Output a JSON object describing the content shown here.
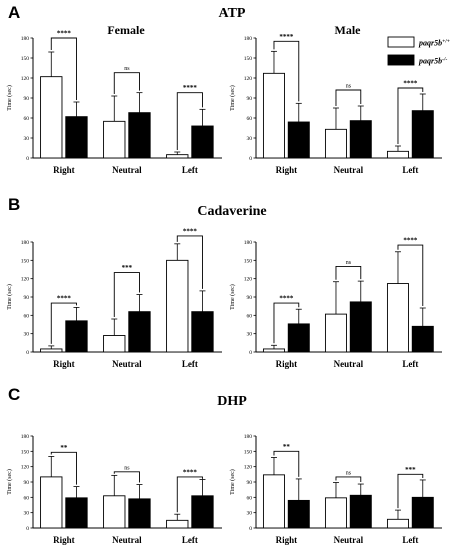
{
  "figure": {
    "panel_letters": [
      "A",
      "B",
      "C"
    ],
    "row_titles": [
      "ATP",
      "Cadaverine",
      "DHP"
    ],
    "legend": {
      "entries": [
        {
          "label": "paqr5b",
          "sup": "+/+",
          "color": "#ffffff"
        },
        {
          "label": "paqr5b",
          "sup": "-/-",
          "color": "#000000"
        }
      ]
    }
  },
  "chart_data": [
    {
      "type": "bar",
      "panel": "A",
      "title": "Female",
      "categories": [
        "Right",
        "Neutral",
        "Left"
      ],
      "ylabel": "Time (sec)",
      "ylim": [
        0,
        180
      ],
      "yticks": [
        0,
        30,
        60,
        90,
        120,
        150,
        180
      ],
      "series": [
        {
          "name": "paqr5b+/+",
          "color": "#ffffff",
          "values": [
            122,
            55,
            5
          ],
          "errors": [
            37,
            38,
            4
          ]
        },
        {
          "name": "paqr5b-/-",
          "color": "#000000",
          "values": [
            62,
            68,
            48
          ],
          "errors": [
            22,
            30,
            25
          ]
        }
      ],
      "significance": [
        "****",
        "ns",
        "****"
      ],
      "bracket_y": [
        180,
        128,
        98
      ]
    },
    {
      "type": "bar",
      "panel": "A",
      "title": "Male",
      "categories": [
        "Right",
        "Neutral",
        "Left"
      ],
      "ylabel": "Time (sec)",
      "ylim": [
        0,
        180
      ],
      "yticks": [
        0,
        30,
        60,
        90,
        120,
        150,
        180
      ],
      "series": [
        {
          "name": "paqr5b+/+",
          "color": "#ffffff",
          "values": [
            127,
            43,
            10
          ],
          "errors": [
            33,
            32,
            8
          ]
        },
        {
          "name": "paqr5b-/-",
          "color": "#000000",
          "values": [
            54,
            56,
            71
          ],
          "errors": [
            28,
            22,
            25
          ]
        }
      ],
      "significance": [
        "****",
        "ns",
        "****"
      ],
      "bracket_y": [
        175,
        102,
        105
      ]
    },
    {
      "type": "bar",
      "panel": "B",
      "categories": [
        "Right",
        "Neutral",
        "Left"
      ],
      "ylabel": "Time (sec)",
      "ylim": [
        0,
        180
      ],
      "yticks": [
        0,
        30,
        60,
        90,
        120,
        150,
        180
      ],
      "series": [
        {
          "name": "paqr5b+/+",
          "color": "#ffffff",
          "values": [
            5,
            27,
            150
          ],
          "errors": [
            5,
            27,
            27
          ]
        },
        {
          "name": "paqr5b-/-",
          "color": "#000000",
          "values": [
            51,
            66,
            66
          ],
          "errors": [
            22,
            28,
            34
          ]
        }
      ],
      "significance": [
        "****",
        "***",
        "****"
      ],
      "bracket_y": [
        80,
        130,
        190
      ]
    },
    {
      "type": "bar",
      "panel": "B",
      "categories": [
        "Right",
        "Neutral",
        "Left"
      ],
      "ylabel": "Time (sec)",
      "ylim": [
        0,
        180
      ],
      "yticks": [
        0,
        30,
        60,
        90,
        120,
        150,
        180
      ],
      "series": [
        {
          "name": "paqr5b+/+",
          "color": "#ffffff",
          "values": [
            5,
            62,
            112
          ],
          "errors": [
            6,
            53,
            52
          ]
        },
        {
          "name": "paqr5b-/-",
          "color": "#000000",
          "values": [
            46,
            82,
            42
          ],
          "errors": [
            24,
            34,
            30
          ]
        }
      ],
      "significance": [
        "****",
        "ns",
        "****"
      ],
      "bracket_y": [
        80,
        140,
        175
      ]
    },
    {
      "type": "bar",
      "panel": "C",
      "categories": [
        "Right",
        "Neutral",
        "Left"
      ],
      "ylabel": "Time (sec)",
      "ylim": [
        0,
        180
      ],
      "yticks": [
        0,
        30,
        60,
        90,
        120,
        150,
        180
      ],
      "series": [
        {
          "name": "paqr5b+/+",
          "color": "#ffffff",
          "values": [
            100,
            63,
            15
          ],
          "errors": [
            40,
            40,
            12
          ]
        },
        {
          "name": "paqr5b-/-",
          "color": "#000000",
          "values": [
            59,
            57,
            63
          ],
          "errors": [
            22,
            28,
            32
          ]
        }
      ],
      "significance": [
        "**",
        "ns",
        "****"
      ],
      "bracket_y": [
        148,
        110,
        100
      ]
    },
    {
      "type": "bar",
      "panel": "C",
      "categories": [
        "Right",
        "Neutral",
        "Left"
      ],
      "ylabel": "Time (sec)",
      "ylim": [
        0,
        180
      ],
      "yticks": [
        0,
        30,
        60,
        90,
        120,
        150,
        180
      ],
      "series": [
        {
          "name": "paqr5b+/+",
          "color": "#ffffff",
          "values": [
            104,
            59,
            17
          ],
          "errors": [
            34,
            30,
            18
          ]
        },
        {
          "name": "paqr5b-/-",
          "color": "#000000",
          "values": [
            54,
            64,
            60
          ],
          "errors": [
            42,
            22,
            34
          ]
        }
      ],
      "significance": [
        "**",
        "ns",
        "***"
      ],
      "bracket_y": [
        150,
        100,
        105
      ]
    }
  ]
}
